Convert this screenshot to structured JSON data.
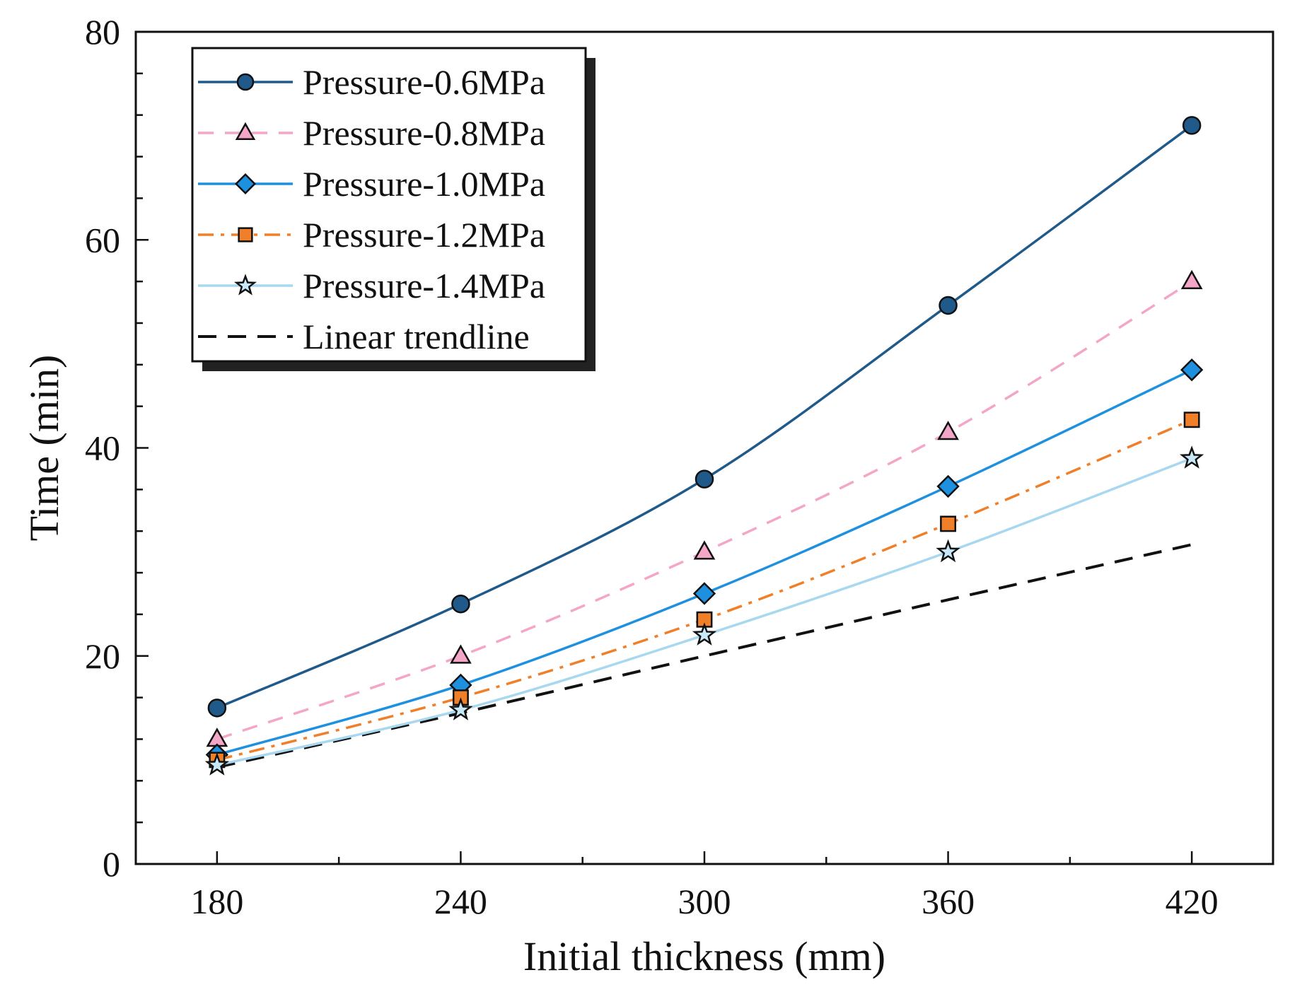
{
  "chart_data": {
    "type": "line",
    "title": "",
    "xlabel": "Initial thickness (mm)",
    "ylabel": "Time (min)",
    "x": [
      180,
      240,
      300,
      360,
      420
    ],
    "xlim": [
      160,
      440
    ],
    "ylim": [
      0,
      80
    ],
    "x_ticks": [
      "180",
      "240",
      "300",
      "360",
      "420"
    ],
    "y_ticks": [
      "0",
      "20",
      "40",
      "60",
      "80"
    ],
    "legend_position": "top-left",
    "grid": false,
    "series": [
      {
        "name": "Pressure-0.6MPa",
        "values": [
          15.0,
          25.0,
          37.0,
          53.7,
          71.0
        ],
        "color": "#1f5a8a",
        "marker": "circle",
        "dash": "solid",
        "marker_fill": "#1f5a8a"
      },
      {
        "name": "Pressure-0.8MPa",
        "values": [
          12.0,
          20.0,
          30.0,
          41.5,
          56.0
        ],
        "color": "#f4a6c8",
        "marker": "triangle",
        "dash": "dashed",
        "marker_fill": "#f4a6c8"
      },
      {
        "name": "Pressure-1.0MPa",
        "values": [
          10.5,
          17.2,
          26.0,
          36.3,
          47.5
        ],
        "color": "#1e90e0",
        "marker": "diamond",
        "dash": "solid",
        "marker_fill": "#1e90e0"
      },
      {
        "name": "Pressure-1.2MPa",
        "values": [
          10.0,
          16.0,
          23.5,
          32.7,
          42.7
        ],
        "color": "#f07f2a",
        "marker": "square",
        "dash": "dashdot",
        "marker_fill": "#f07f2a"
      },
      {
        "name": "Pressure-1.4MPa",
        "values": [
          9.5,
          14.8,
          22.0,
          30.0,
          39.0
        ],
        "color": "#a8d8f0",
        "marker": "star",
        "dash": "solid",
        "marker_fill": "#c8e8f8"
      },
      {
        "name": "Linear trendline",
        "values": [
          9.3,
          14.5,
          20.0,
          25.4,
          30.7
        ],
        "color": "#111111",
        "marker": "none",
        "dash": "longdash",
        "marker_fill": "none"
      }
    ]
  }
}
